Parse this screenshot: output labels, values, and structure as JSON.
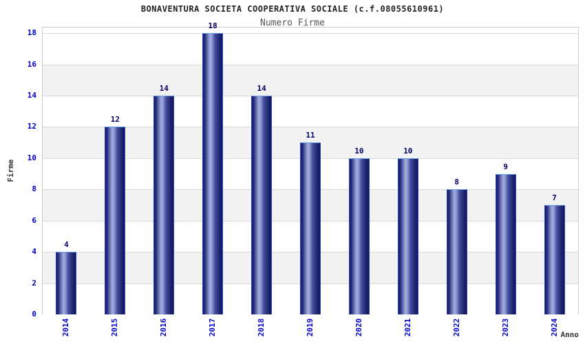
{
  "chart_data": {
    "type": "bar",
    "title": "BONAVENTURA SOCIETA COOPERATIVA SOCIALE (c.f.08055610961)",
    "subtitle": "Numero Firme",
    "xlabel": "Anno",
    "ylabel": "Firme",
    "categories": [
      "2014",
      "2015",
      "2016",
      "2017",
      "2018",
      "2019",
      "2020",
      "2021",
      "2022",
      "2023",
      "2024"
    ],
    "values": [
      4,
      12,
      14,
      18,
      14,
      11,
      10,
      10,
      8,
      9,
      7
    ],
    "ylim": [
      0,
      18.4
    ],
    "yticks": [
      0,
      2,
      4,
      6,
      8,
      10,
      12,
      14,
      16,
      18
    ],
    "grid": true,
    "legend": false,
    "colors": {
      "bar_dark": "#141b63",
      "bar_light": "#a3aede",
      "bar_border_side": "#2d47c8",
      "bar_border_top": "#63a0e8",
      "tick_label": "#0000cc",
      "value_label": "#000066",
      "title": "#222222",
      "subtitle": "#555555",
      "axis_title": "#333333",
      "band_gray": "#f2f2f2",
      "band_white": "#ffffff",
      "gridline": "#d9d9d9",
      "plot_border": "#cccccc",
      "background": "#ffffff"
    }
  }
}
